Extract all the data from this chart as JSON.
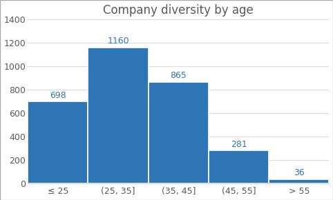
{
  "title": "Company diversity by age",
  "categories": [
    "≤ 25",
    "(25, 35]",
    "(35, 45]",
    "(45, 55]",
    "> 55"
  ],
  "values": [
    698,
    1160,
    865,
    281,
    36
  ],
  "bar_color": "#2e75b6",
  "ylim": [
    0,
    1400
  ],
  "yticks": [
    0,
    200,
    400,
    600,
    800,
    1000,
    1200,
    1400
  ],
  "background_color": "#ffffff",
  "plot_bg_color": "#ffffff",
  "border_color": "#aaaaaa",
  "title_fontsize": 12,
  "tick_fontsize": 9,
  "annotation_fontsize": 9,
  "annotation_color": "#2e75b6",
  "tick_color": "#595959",
  "grid_color": "#d9d9d9"
}
